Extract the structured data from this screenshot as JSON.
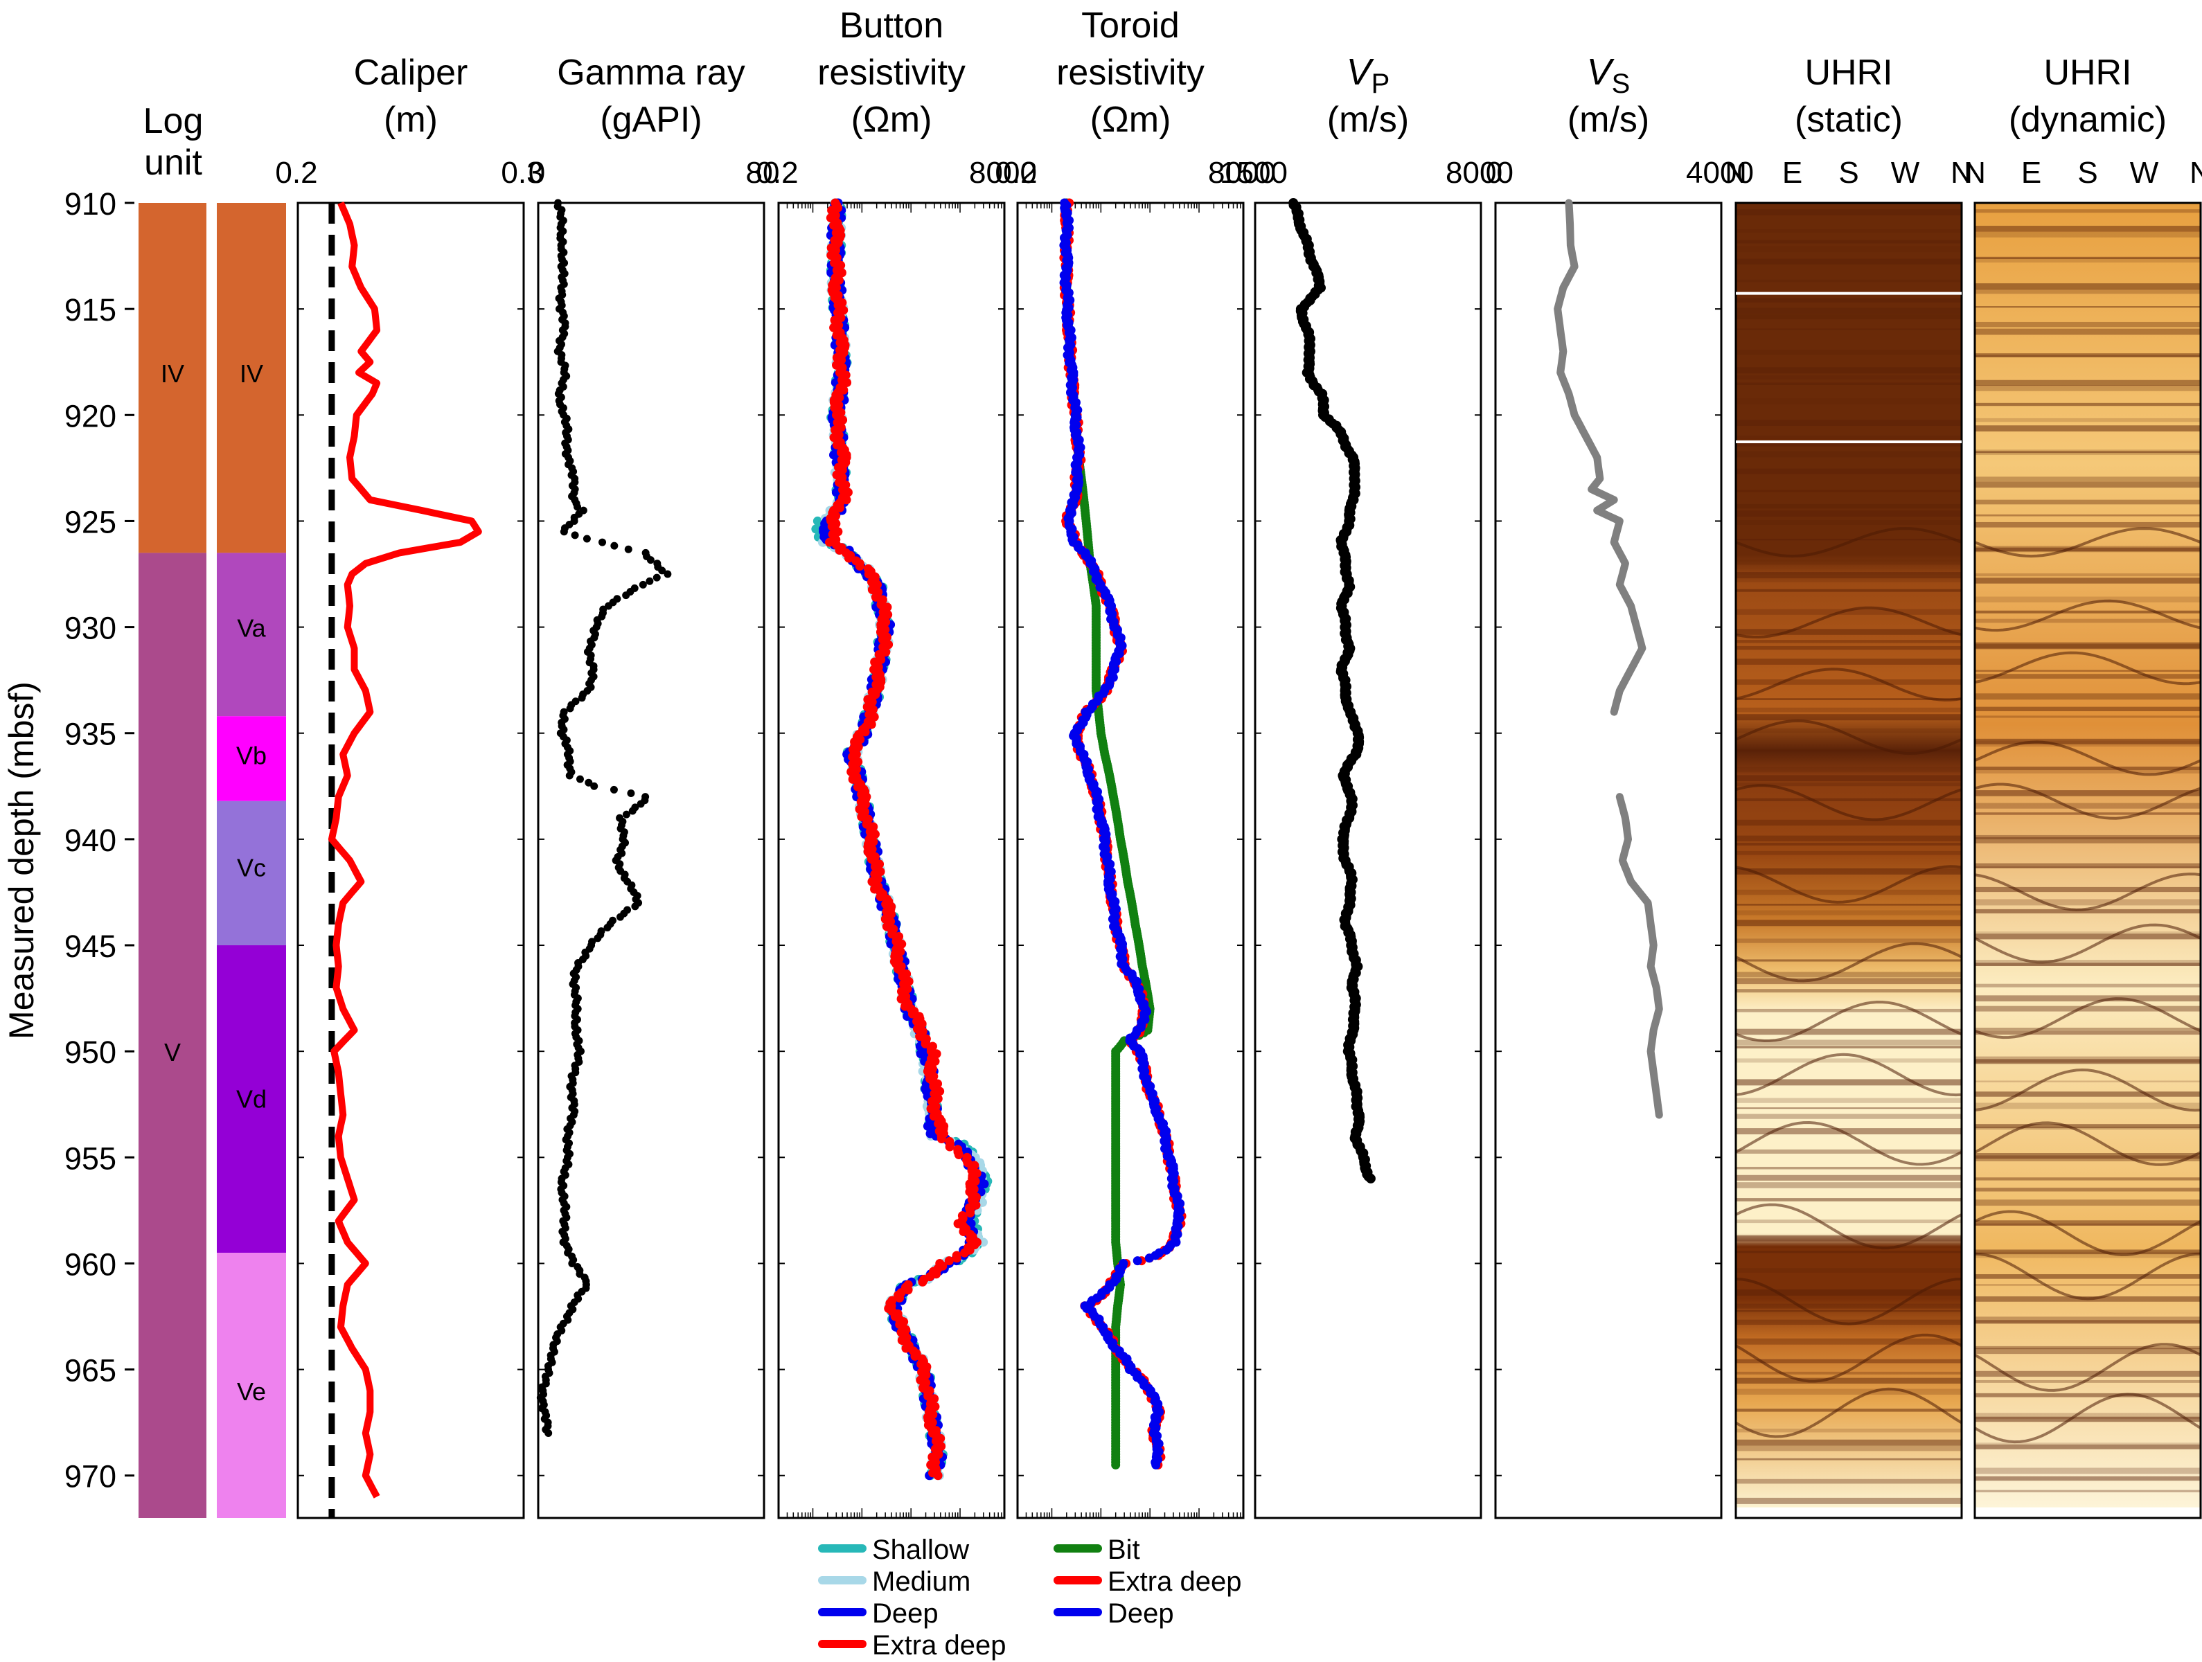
{
  "figure": {
    "y_axis_label": "Measured depth (mbsf)",
    "depth_ticks": [
      910,
      915,
      920,
      925,
      930,
      935,
      940,
      945,
      950,
      955,
      960,
      965,
      970
    ],
    "colors": {
      "unit_IV": "#d4652e",
      "unit_V": "#ab4a8c",
      "Va": "#b048bd",
      "Vb": "#ff00ff",
      "Vc": "#9472d9",
      "Vd": "#9400d6",
      "Ve": "#ee82ee",
      "caliper": "#ff0000",
      "gamma": "#000000",
      "shallow": "#27b8b8",
      "medium": "#a8d8e8",
      "deep": "#0000ee",
      "extra_deep": "#ff0000",
      "bit": "#118011",
      "vp": "#000000",
      "vs": "#808080"
    }
  },
  "chart_data": [
    {
      "type": "strip",
      "title": "Log unit",
      "units": [
        {
          "label": "IV",
          "top": 910,
          "base": 926.5
        },
        {
          "label": "V",
          "top": 926.5,
          "base": 972
        }
      ],
      "subunits": [
        {
          "label": "IV",
          "top": 910,
          "base": 926.5
        },
        {
          "label": "Va",
          "top": 926.5,
          "base": 934.2
        },
        {
          "label": "Vb",
          "top": 934.2,
          "base": 938.2
        },
        {
          "label": "Vc",
          "top": 938.2,
          "base": 945
        },
        {
          "label": "Vd",
          "top": 945,
          "base": 959.5
        },
        {
          "label": "Ve",
          "top": 959.5,
          "base": 972
        }
      ]
    },
    {
      "type": "line",
      "title": "Caliper",
      "unit": "(m)",
      "xlim": [
        0.2,
        0.3
      ],
      "tick_labels": [
        "0.2",
        "0.3"
      ],
      "bit_size": 0.215,
      "depth": [
        910,
        911,
        912,
        913,
        914,
        915,
        916,
        917,
        917.5,
        918,
        918.5,
        919,
        920,
        921,
        922,
        923,
        924,
        924.5,
        925,
        925.5,
        926,
        926.5,
        927,
        927.5,
        928,
        929,
        930,
        931,
        932,
        933,
        934,
        935,
        936,
        937,
        938,
        939,
        940,
        941,
        942,
        943,
        944,
        945,
        946,
        947,
        948,
        949,
        950,
        951,
        952,
        953,
        954,
        955,
        956,
        957,
        958,
        959,
        960,
        961,
        962,
        963,
        964,
        965,
        966,
        967,
        968,
        969,
        970,
        971
      ],
      "values": [
        0.219,
        0.223,
        0.225,
        0.224,
        0.228,
        0.234,
        0.235,
        0.228,
        0.232,
        0.227,
        0.235,
        0.233,
        0.226,
        0.225,
        0.223,
        0.224,
        0.232,
        0.255,
        0.277,
        0.28,
        0.272,
        0.245,
        0.23,
        0.224,
        0.222,
        0.223,
        0.222,
        0.225,
        0.225,
        0.23,
        0.232,
        0.225,
        0.22,
        0.222,
        0.218,
        0.217,
        0.215,
        0.223,
        0.228,
        0.22,
        0.218,
        0.217,
        0.218,
        0.217,
        0.22,
        0.225,
        0.216,
        0.218,
        0.219,
        0.22,
        0.218,
        0.219,
        0.222,
        0.225,
        0.218,
        0.222,
        0.23,
        0.222,
        0.22,
        0.219,
        0.224,
        0.23,
        0.232,
        0.232,
        0.23,
        0.232,
        0.23,
        0.235
      ]
    },
    {
      "type": "scatter",
      "title": "Gamma ray",
      "unit": "(gAPI)",
      "xlim": [
        0,
        80
      ],
      "tick_labels": [
        "0",
        "80"
      ],
      "depth": [
        910,
        911,
        912,
        913,
        914,
        915,
        916,
        917,
        918,
        919,
        920,
        921,
        922,
        923,
        924,
        924.5,
        925,
        925.5,
        926,
        926.5,
        927,
        927.5,
        928,
        929,
        930,
        931,
        932,
        933,
        934,
        935,
        936,
        937,
        937.5,
        938,
        938.5,
        939,
        940,
        941,
        942,
        943,
        944,
        945,
        946,
        947,
        948,
        949,
        950,
        951,
        952,
        953,
        954,
        955,
        956,
        957,
        958,
        959,
        960,
        961,
        962,
        963,
        964,
        965,
        966,
        967,
        968
      ],
      "values": [
        7,
        8,
        9,
        8,
        9,
        8,
        9,
        8,
        9,
        8,
        9,
        10,
        11,
        12,
        13,
        16,
        12,
        8,
        22,
        38,
        42,
        45,
        36,
        25,
        20,
        18,
        20,
        17,
        10,
        8,
        11,
        12,
        20,
        38,
        35,
        30,
        30,
        28,
        32,
        35,
        26,
        18,
        14,
        13,
        13,
        14,
        14,
        13,
        12,
        12,
        11,
        10,
        9,
        9,
        9,
        10,
        12,
        18,
        12,
        8,
        6,
        3,
        2,
        2,
        3
      ]
    },
    {
      "type": "line",
      "title": "Button resistivity",
      "unit": "(Ωm)",
      "xscale": "log",
      "xlim": [
        0.2,
        8000
      ],
      "tick_labels": [
        "0.2",
        "8000"
      ],
      "depth": [
        910,
        912,
        914,
        916,
        918,
        920,
        922,
        924,
        925,
        926,
        927,
        928,
        930,
        932,
        934,
        936,
        938,
        940,
        942,
        944,
        946,
        948,
        950,
        952,
        954,
        955,
        956,
        957,
        958,
        959,
        960,
        961,
        962,
        963,
        964,
        965,
        966,
        967,
        968,
        969,
        970
      ],
      "series": [
        {
          "name": "Shallow",
          "values": [
            3,
            3,
            3,
            3.5,
            4,
            3,
            3.5,
            4,
            1.5,
            1.5,
            8,
            20,
            30,
            22,
            15,
            6,
            10,
            15,
            20,
            40,
            60,
            90,
            200,
            250,
            300,
            2000,
            3000,
            2500,
            1500,
            2500,
            500,
            80,
            40,
            60,
            100,
            180,
            220,
            250,
            300,
            350,
            300
          ]
        },
        {
          "name": "Medium",
          "values": [
            3,
            3,
            3,
            3.5,
            4,
            3,
            3.5,
            4,
            1.8,
            1.8,
            8,
            20,
            30,
            22,
            15,
            6,
            10,
            15,
            20,
            40,
            60,
            90,
            200,
            250,
            300,
            1800,
            2800,
            2300,
            1400,
            2300,
            500,
            80,
            40,
            60,
            100,
            180,
            220,
            250,
            300,
            350,
            300
          ]
        },
        {
          "name": "Deep",
          "values": [
            3,
            3,
            3,
            3.5,
            4,
            3,
            3.5,
            4,
            2,
            2,
            8,
            20,
            30,
            22,
            15,
            6,
            10,
            15,
            20,
            40,
            60,
            90,
            200,
            250,
            300,
            1500,
            2500,
            2000,
            1200,
            2000,
            500,
            80,
            40,
            60,
            100,
            180,
            220,
            250,
            300,
            350,
            300
          ]
        },
        {
          "name": "Extra deep",
          "values": [
            3,
            3,
            3,
            3.5,
            4,
            3,
            4,
            4,
            2.5,
            2.5,
            8,
            20,
            30,
            22,
            15,
            6,
            10,
            15,
            20,
            40,
            60,
            90,
            250,
            300,
            400,
            1200,
            2000,
            1800,
            1100,
            1800,
            500,
            80,
            40,
            60,
            100,
            180,
            220,
            250,
            300,
            350,
            300
          ]
        }
      ]
    },
    {
      "type": "line",
      "title": "Toroid resistivity",
      "unit": "(Ωm)",
      "xscale": "log",
      "xlim": [
        0.2,
        8000
      ],
      "tick_labels": [
        "0.2",
        "8000"
      ],
      "depth": [
        910,
        912,
        914,
        916,
        918,
        920,
        922,
        924,
        925,
        926,
        927,
        928,
        929,
        930,
        931,
        932,
        933,
        934,
        935,
        936,
        938,
        940,
        942,
        944,
        946,
        948,
        949,
        949.5,
        950,
        952,
        954,
        956,
        958,
        959,
        960,
        961,
        962,
        963,
        964,
        965,
        966,
        967,
        968,
        969,
        969.5
      ],
      "series": [
        {
          "name": "Bit",
          "values": [
            2,
            2,
            2,
            2.2,
            2.5,
            3,
            3.5,
            4.5,
            5,
            5.5,
            6,
            7,
            8,
            8,
            8,
            8,
            8,
            9,
            10,
            12,
            18,
            25,
            35,
            50,
            70,
            100,
            90,
            30,
            20,
            20,
            20,
            20,
            20,
            20,
            22,
            25,
            22,
            20,
            20,
            20,
            20,
            20,
            20,
            20,
            20
          ]
        },
        {
          "name": "Extra deep",
          "values": [
            2,
            2,
            2,
            2.2,
            2.5,
            3,
            3.5,
            3,
            2,
            3,
            6,
            10,
            15,
            20,
            25,
            18,
            12,
            5,
            3,
            4,
            8,
            12,
            15,
            20,
            30,
            80,
            60,
            40,
            60,
            100,
            200,
            300,
            400,
            300,
            30,
            15,
            5,
            10,
            20,
            40,
            100,
            150,
            120,
            150,
            140
          ]
        },
        {
          "name": "Deep",
          "values": [
            2,
            2,
            2,
            2.2,
            2.5,
            3,
            3.5,
            3,
            2,
            3,
            6,
            10,
            15,
            20,
            25,
            18,
            12,
            5,
            3,
            4,
            8,
            12,
            15,
            20,
            30,
            80,
            60,
            40,
            60,
            100,
            200,
            300,
            400,
            300,
            30,
            15,
            5,
            10,
            20,
            40,
            100,
            150,
            120,
            150,
            140
          ]
        }
      ]
    },
    {
      "type": "scatter",
      "title": "V",
      "title_subscript": "P",
      "unit": "(m/s)",
      "xlim": [
        1500,
        8000
      ],
      "tick_labels": [
        "1500",
        "8000"
      ],
      "depth": [
        910,
        911,
        912,
        913,
        914,
        915,
        916,
        917,
        918,
        919,
        920,
        920.5,
        921,
        922,
        923,
        924,
        925,
        926,
        927,
        928,
        929,
        930,
        931,
        932,
        933,
        934,
        935,
        936,
        937,
        938,
        939,
        940,
        941,
        942,
        943,
        944,
        945,
        946,
        947,
        948,
        949,
        950,
        951,
        952,
        953,
        954,
        955,
        956
      ],
      "values": [
        2600,
        2800,
        3000,
        3200,
        3400,
        2800,
        3000,
        3100,
        3000,
        3400,
        3500,
        3800,
        4000,
        4300,
        4400,
        4300,
        4200,
        4000,
        4100,
        4200,
        4000,
        4100,
        4200,
        4000,
        4100,
        4200,
        4500,
        4400,
        4000,
        4300,
        4200,
        4000,
        4100,
        4300,
        4200,
        4100,
        4300,
        4400,
        4300,
        4400,
        4300,
        4200,
        4300,
        4400,
        4500,
        4400,
        4600,
        4800
      ]
    },
    {
      "type": "line",
      "title": "V",
      "title_subscript": "S",
      "unit": "(m/s)",
      "xlim": [
        0,
        4000
      ],
      "tick_labels": [
        "0",
        "4000"
      ],
      "segments": [
        {
          "depth": [
            910,
            911,
            912,
            913,
            914,
            915,
            916,
            917,
            918,
            919,
            920,
            921,
            922,
            923,
            923.5,
            924,
            924.5,
            925,
            926,
            927,
            928,
            929,
            930,
            931,
            932,
            933,
            934
          ],
          "values": [
            1300,
            1320,
            1330,
            1400,
            1200,
            1100,
            1150,
            1200,
            1150,
            1300,
            1400,
            1600,
            1800,
            1850,
            1700,
            2100,
            1800,
            2200,
            2100,
            2300,
            2200,
            2400,
            2500,
            2600,
            2400,
            2200,
            2100
          ]
        },
        {
          "depth": [
            938,
            939,
            940,
            941,
            942,
            943,
            944,
            945,
            946,
            947,
            948,
            949,
            950,
            951,
            952,
            953
          ],
          "values": [
            2200,
            2300,
            2350,
            2250,
            2400,
            2700,
            2750,
            2800,
            2750,
            2850,
            2900,
            2800,
            2750,
            2800,
            2850,
            2900
          ]
        }
      ]
    },
    {
      "type": "image",
      "title": "UHRI",
      "subtitle": "(static)",
      "tick_labels": [
        "N",
        "E",
        "S",
        "W",
        "N"
      ]
    },
    {
      "type": "image",
      "title": "UHRI",
      "subtitle": "(dynamic)",
      "tick_labels": [
        "N",
        "E",
        "S",
        "W",
        "N"
      ]
    }
  ],
  "legends": {
    "button": [
      "Shallow",
      "Medium",
      "Deep",
      "Extra deep"
    ],
    "toroid": [
      "Bit",
      "Extra deep",
      "Deep"
    ]
  }
}
